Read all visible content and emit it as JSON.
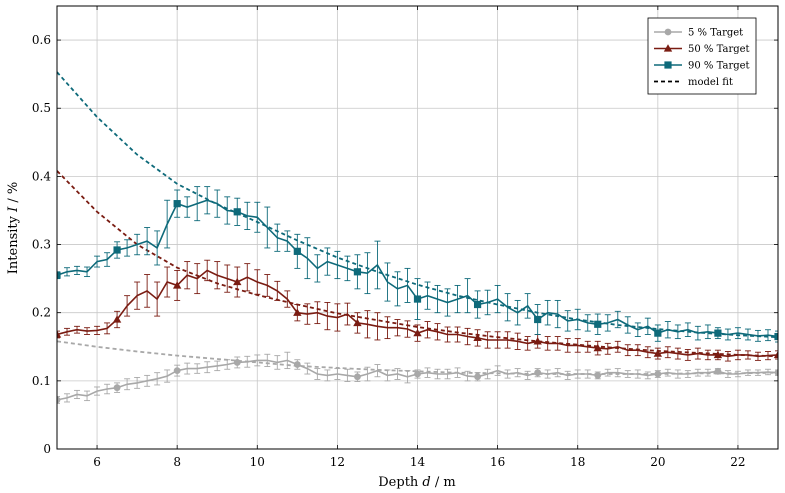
{
  "chart_data": {
    "type": "line",
    "title": "",
    "xlabel": "Depth d / m",
    "ylabel": "Intensity I / %",
    "xlabel_parts": [
      "Depth ",
      "d",
      " / m"
    ],
    "ylabel_parts": [
      "Intensity ",
      "I",
      " / %"
    ],
    "xlim": [
      5,
      23
    ],
    "ylim": [
      0,
      0.65
    ],
    "xticks": [
      6,
      8,
      10,
      12,
      14,
      16,
      18,
      20,
      22
    ],
    "xtick_labels": [
      "6",
      "8",
      "10",
      "12",
      "14",
      "16",
      "18",
      "20",
      "22"
    ],
    "yticks": [
      0,
      0.1,
      0.2,
      0.3,
      0.4,
      0.5,
      0.6
    ],
    "ytick_labels": [
      "0",
      "0.1",
      "0.2",
      "0.3",
      "0.4",
      "0.5",
      "0.6"
    ],
    "grid": true,
    "legend_position": "top-right",
    "series": [
      {
        "name": "5 % Target",
        "color": "#a8a8a8",
        "marker": "circle",
        "x": [
          5,
          5.25,
          5.5,
          5.75,
          6,
          6.25,
          6.5,
          6.75,
          7,
          7.25,
          7.5,
          7.75,
          8,
          8.25,
          8.5,
          8.75,
          9,
          9.25,
          9.5,
          9.75,
          10,
          10.25,
          10.5,
          10.75,
          11,
          11.25,
          11.5,
          11.75,
          12,
          12.25,
          12.5,
          12.75,
          13,
          13.25,
          13.5,
          13.75,
          14,
          14.25,
          14.5,
          14.75,
          15,
          15.25,
          15.5,
          15.75,
          16,
          16.25,
          16.5,
          16.75,
          17,
          17.25,
          17.5,
          17.75,
          18,
          18.25,
          18.5,
          18.75,
          19,
          19.25,
          19.5,
          19.75,
          20,
          20.25,
          20.5,
          20.75,
          21,
          21.25,
          21.5,
          21.75,
          22,
          22.25,
          22.5,
          22.75,
          23
        ],
        "y": [
          0.072,
          0.075,
          0.08,
          0.078,
          0.085,
          0.088,
          0.09,
          0.095,
          0.097,
          0.1,
          0.103,
          0.107,
          0.115,
          0.118,
          0.118,
          0.12,
          0.122,
          0.124,
          0.127,
          0.128,
          0.13,
          0.13,
          0.127,
          0.13,
          0.124,
          0.118,
          0.11,
          0.108,
          0.11,
          0.108,
          0.106,
          0.11,
          0.115,
          0.108,
          0.11,
          0.106,
          0.11,
          0.112,
          0.11,
          0.11,
          0.112,
          0.107,
          0.106,
          0.11,
          0.115,
          0.11,
          0.112,
          0.108,
          0.112,
          0.11,
          0.112,
          0.108,
          0.11,
          0.11,
          0.108,
          0.112,
          0.112,
          0.11,
          0.11,
          0.108,
          0.11,
          0.112,
          0.11,
          0.11,
          0.112,
          0.112,
          0.114,
          0.11,
          0.11,
          0.112,
          0.112,
          0.113,
          0.112
        ],
        "err": [
          0.005,
          0.006,
          0.006,
          0.007,
          0.006,
          0.007,
          0.007,
          0.008,
          0.008,
          0.008,
          0.009,
          0.009,
          0.008,
          0.008,
          0.007,
          0.008,
          0.007,
          0.007,
          0.008,
          0.008,
          0.008,
          0.009,
          0.01,
          0.012,
          0.007,
          0.008,
          0.008,
          0.008,
          0.008,
          0.009,
          0.007,
          0.01,
          0.009,
          0.008,
          0.008,
          0.009,
          0.006,
          0.007,
          0.007,
          0.007,
          0.007,
          0.007,
          0.006,
          0.007,
          0.007,
          0.006,
          0.006,
          0.006,
          0.006,
          0.006,
          0.006,
          0.006,
          0.006,
          0.006,
          0.005,
          0.005,
          0.006,
          0.005,
          0.006,
          0.005,
          0.005,
          0.005,
          0.006,
          0.005,
          0.005,
          0.005,
          0.004,
          0.005,
          0.004,
          0.004,
          0.004,
          0.004,
          0.004
        ]
      },
      {
        "name": "50 % Target",
        "color": "#7a1c12",
        "marker": "triangle",
        "x": [
          5,
          5.25,
          5.5,
          5.75,
          6,
          6.25,
          6.5,
          6.75,
          7,
          7.25,
          7.5,
          7.75,
          8,
          8.25,
          8.5,
          8.75,
          9,
          9.25,
          9.5,
          9.75,
          10,
          10.25,
          10.5,
          10.75,
          11,
          11.25,
          11.5,
          11.75,
          12,
          12.25,
          12.5,
          12.75,
          13,
          13.25,
          13.5,
          13.75,
          14,
          14.25,
          14.5,
          14.75,
          15,
          15.25,
          15.5,
          15.75,
          16,
          16.25,
          16.5,
          16.75,
          17,
          17.25,
          17.5,
          17.75,
          18,
          18.25,
          18.5,
          18.75,
          19,
          19.25,
          19.5,
          19.75,
          20,
          20.25,
          20.5,
          20.75,
          21,
          21.25,
          21.5,
          21.75,
          22,
          22.25,
          22.5,
          22.75,
          23
        ],
        "y": [
          0.168,
          0.172,
          0.175,
          0.173,
          0.174,
          0.177,
          0.19,
          0.21,
          0.225,
          0.232,
          0.22,
          0.245,
          0.24,
          0.255,
          0.25,
          0.262,
          0.255,
          0.25,
          0.245,
          0.252,
          0.245,
          0.24,
          0.232,
          0.22,
          0.2,
          0.198,
          0.2,
          0.195,
          0.193,
          0.198,
          0.185,
          0.183,
          0.18,
          0.178,
          0.178,
          0.176,
          0.17,
          0.175,
          0.172,
          0.168,
          0.168,
          0.165,
          0.163,
          0.16,
          0.16,
          0.16,
          0.158,
          0.155,
          0.158,
          0.155,
          0.155,
          0.152,
          0.152,
          0.15,
          0.148,
          0.147,
          0.15,
          0.145,
          0.145,
          0.142,
          0.14,
          0.142,
          0.14,
          0.138,
          0.14,
          0.138,
          0.138,
          0.136,
          0.138,
          0.138,
          0.136,
          0.137,
          0.138
        ],
        "err": [
          0.005,
          0.005,
          0.005,
          0.005,
          0.006,
          0.008,
          0.012,
          0.015,
          0.02,
          0.024,
          0.025,
          0.022,
          0.022,
          0.02,
          0.022,
          0.015,
          0.02,
          0.02,
          0.022,
          0.02,
          0.018,
          0.016,
          0.014,
          0.012,
          0.012,
          0.015,
          0.016,
          0.02,
          0.02,
          0.016,
          0.015,
          0.02,
          0.02,
          0.016,
          0.012,
          0.012,
          0.012,
          0.012,
          0.012,
          0.011,
          0.011,
          0.012,
          0.012,
          0.012,
          0.012,
          0.012,
          0.012,
          0.01,
          0.01,
          0.01,
          0.01,
          0.01,
          0.01,
          0.008,
          0.01,
          0.008,
          0.008,
          0.008,
          0.008,
          0.008,
          0.008,
          0.008,
          0.008,
          0.008,
          0.008,
          0.007,
          0.007,
          0.007,
          0.007,
          0.006,
          0.006,
          0.006,
          0.006
        ]
      },
      {
        "name": "90 % Target",
        "color": "#0e6a7a",
        "marker": "square",
        "x": [
          5,
          5.25,
          5.5,
          5.75,
          6,
          6.25,
          6.5,
          6.75,
          7,
          7.25,
          7.5,
          7.75,
          8,
          8.25,
          8.5,
          8.75,
          9,
          9.25,
          9.5,
          9.75,
          10,
          10.25,
          10.5,
          10.75,
          11,
          11.25,
          11.5,
          11.75,
          12,
          12.25,
          12.5,
          12.75,
          13,
          13.25,
          13.5,
          13.75,
          14,
          14.25,
          14.5,
          14.75,
          15,
          15.25,
          15.5,
          15.75,
          16,
          16.25,
          16.5,
          16.75,
          17,
          17.25,
          17.5,
          17.75,
          18,
          18.25,
          18.5,
          18.75,
          19,
          19.25,
          19.5,
          19.75,
          20,
          20.25,
          20.5,
          20.75,
          21,
          21.25,
          21.5,
          21.75,
          22,
          22.25,
          22.5,
          22.75,
          23
        ],
        "y": [
          0.255,
          0.26,
          0.262,
          0.26,
          0.275,
          0.278,
          0.292,
          0.295,
          0.3,
          0.305,
          0.295,
          0.33,
          0.36,
          0.355,
          0.36,
          0.365,
          0.36,
          0.35,
          0.348,
          0.342,
          0.34,
          0.325,
          0.31,
          0.305,
          0.29,
          0.28,
          0.265,
          0.275,
          0.27,
          0.265,
          0.26,
          0.258,
          0.27,
          0.245,
          0.235,
          0.24,
          0.22,
          0.225,
          0.22,
          0.215,
          0.22,
          0.225,
          0.212,
          0.215,
          0.22,
          0.208,
          0.2,
          0.21,
          0.19,
          0.2,
          0.198,
          0.188,
          0.19,
          0.185,
          0.183,
          0.185,
          0.19,
          0.182,
          0.175,
          0.18,
          0.17,
          0.175,
          0.172,
          0.175,
          0.17,
          0.172,
          0.17,
          0.168,
          0.17,
          0.168,
          0.166,
          0.167,
          0.165
        ],
        "err": [
          0.005,
          0.006,
          0.006,
          0.007,
          0.008,
          0.01,
          0.012,
          0.012,
          0.015,
          0.02,
          0.025,
          0.035,
          0.02,
          0.015,
          0.025,
          0.02,
          0.02,
          0.02,
          0.02,
          0.02,
          0.022,
          0.03,
          0.02,
          0.015,
          0.025,
          0.03,
          0.02,
          0.02,
          0.02,
          0.018,
          0.025,
          0.03,
          0.035,
          0.028,
          0.025,
          0.025,
          0.03,
          0.02,
          0.02,
          0.02,
          0.02,
          0.025,
          0.02,
          0.018,
          0.02,
          0.02,
          0.018,
          0.018,
          0.022,
          0.018,
          0.02,
          0.015,
          0.015,
          0.012,
          0.015,
          0.012,
          0.012,
          0.012,
          0.01,
          0.012,
          0.012,
          0.012,
          0.01,
          0.01,
          0.01,
          0.01,
          0.008,
          0.008,
          0.008,
          0.008,
          0.008,
          0.008,
          0.008
        ]
      }
    ],
    "model_fit": {
      "name": "model fit",
      "line_style": "dashed",
      "legend_color": "#000000",
      "curves": [
        {
          "for": "5 % Target",
          "color": "#a8a8a8",
          "x": [
            5,
            6,
            7,
            8,
            9,
            10,
            11,
            12,
            13,
            14,
            15,
            16,
            17,
            18,
            19,
            20,
            21,
            22,
            23
          ],
          "y": [
            0.158,
            0.15,
            0.143,
            0.137,
            0.132,
            0.127,
            0.122,
            0.119,
            0.116,
            0.114,
            0.112,
            0.111,
            0.11,
            0.11,
            0.11,
            0.11,
            0.111,
            0.111,
            0.112
          ]
        },
        {
          "for": "50 % Target",
          "color": "#7a1c12",
          "x": [
            5,
            6,
            7,
            8,
            9,
            10,
            11,
            12,
            13,
            14,
            15,
            16,
            17,
            18,
            19,
            20,
            21,
            22,
            23
          ],
          "y": [
            0.408,
            0.348,
            0.3,
            0.266,
            0.243,
            0.226,
            0.212,
            0.199,
            0.189,
            0.179,
            0.171,
            0.164,
            0.158,
            0.153,
            0.148,
            0.144,
            0.141,
            0.138,
            0.136
          ]
        },
        {
          "for": "90 % Target",
          "color": "#0e6a7a",
          "x": [
            5,
            6,
            7,
            8,
            9,
            10,
            11,
            12,
            13,
            14,
            15,
            16,
            17,
            18,
            19,
            20,
            21,
            22,
            23
          ],
          "y": [
            0.553,
            0.487,
            0.432,
            0.389,
            0.359,
            0.333,
            0.306,
            0.281,
            0.26,
            0.241,
            0.225,
            0.212,
            0.2,
            0.19,
            0.182,
            0.176,
            0.171,
            0.167,
            0.164
          ]
        }
      ]
    }
  }
}
